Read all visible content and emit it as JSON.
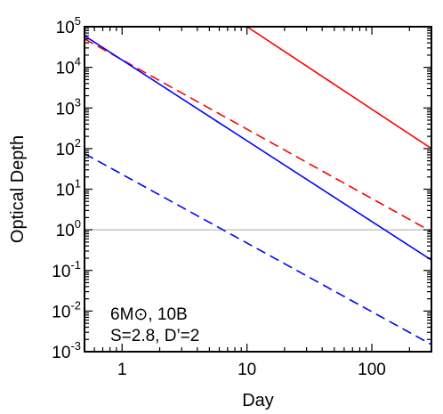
{
  "chart_data": {
    "type": "line",
    "title": "",
    "xlabel": "Day",
    "ylabel": "Optical Depth",
    "xscale": "log",
    "yscale": "log",
    "xlim": [
      0.5,
      300
    ],
    "ylim": [
      0.001,
      100000
    ],
    "x_ticks": [
      {
        "value": 1,
        "label": "1"
      },
      {
        "value": 10,
        "label": "10"
      },
      {
        "value": 100,
        "label": "100"
      }
    ],
    "y_ticks": [
      {
        "value": 100000,
        "base": "10",
        "exp": "5"
      },
      {
        "value": 10000,
        "base": "10",
        "exp": "4"
      },
      {
        "value": 1000,
        "base": "10",
        "exp": "3"
      },
      {
        "value": 100,
        "base": "10",
        "exp": "2"
      },
      {
        "value": 10,
        "base": "10",
        "exp": "1"
      },
      {
        "value": 1,
        "base": "10",
        "exp": "0"
      },
      {
        "value": 0.1,
        "base": "10",
        "exp": "-1"
      },
      {
        "value": 0.01,
        "base": "10",
        "exp": "-2"
      },
      {
        "value": 0.001,
        "base": "10",
        "exp": "-3"
      }
    ],
    "reference_line": {
      "y": 1,
      "color": "#aaaaaa"
    },
    "annotations": [
      "6M⊙, 10B",
      "S=2.8, D’=2"
    ],
    "series": [
      {
        "color": "#ff0000",
        "dash": "solid",
        "x": [
          10,
          300
        ],
        "y": [
          100000,
          100
        ]
      },
      {
        "color": "#ff0000",
        "dash": "dashed",
        "x": [
          0.5,
          300
        ],
        "y": [
          50000,
          0.9
        ]
      },
      {
        "color": "#0000ff",
        "dash": "solid",
        "x": [
          0.5,
          300
        ],
        "y": [
          60000,
          0.18
        ]
      },
      {
        "color": "#0000ff",
        "dash": "dashed",
        "x": [
          0.5,
          300
        ],
        "y": [
          75,
          0.0015
        ]
      }
    ],
    "grid": false,
    "legend": "none"
  }
}
